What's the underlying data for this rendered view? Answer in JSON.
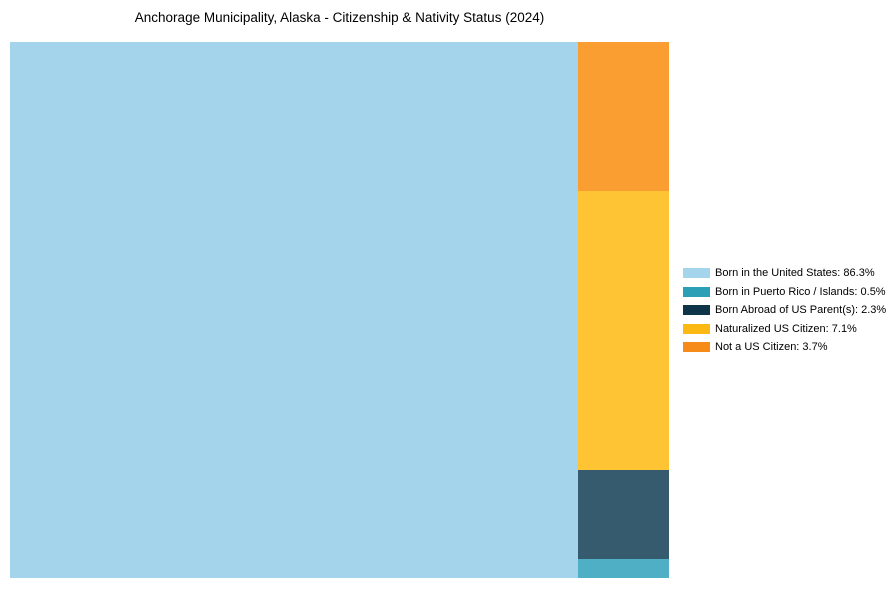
{
  "title": "Anchorage Municipality, Alaska - Citizenship & Nativity Status (2024)",
  "chart_data": {
    "type": "treemap",
    "title": "Anchorage Municipality, Alaska - Citizenship & Nativity Status (2024)",
    "unit": "%",
    "categories": [
      "Born in the United States",
      "Born in Puerto Rico / Islands",
      "Born Abroad of US Parent(s)",
      "Naturalized US Citizen",
      "Not a US Citizen"
    ],
    "values": [
      86.3,
      0.5,
      2.3,
      7.1,
      3.7
    ],
    "legend_position": "right",
    "tiles": [
      {
        "name": "Born in the United States",
        "value": 86.3,
        "color": "#A3D4EC"
      },
      {
        "name": "Not a US Citizen",
        "value": 3.7,
        "color": "#FB9E32"
      },
      {
        "name": "Naturalized US Citizen",
        "value": 7.1,
        "color": "#FEC433"
      },
      {
        "name": "Born Abroad of US Parent(s)",
        "value": 2.3,
        "color": "#365A6E"
      },
      {
        "name": "Born in Puerto Rico / Islands",
        "value": 0.5,
        "color": "#4FAFC5"
      }
    ],
    "legend": [
      {
        "label": "Born in the United States: 86.3%",
        "swatch_color": "#A5D5EC"
      },
      {
        "label": "Born in Puerto Rico / Islands: 0.5%",
        "swatch_color": "#2B9FB5"
      },
      {
        "label": "Born Abroad of US Parent(s): 2.3%",
        "swatch_color": "#0E3449"
      },
      {
        "label": "Naturalized US Citizen: 7.1%",
        "swatch_color": "#FDB913"
      },
      {
        "label": "Not a US Citizen: 3.7%",
        "swatch_color": "#F68B1A"
      }
    ]
  }
}
